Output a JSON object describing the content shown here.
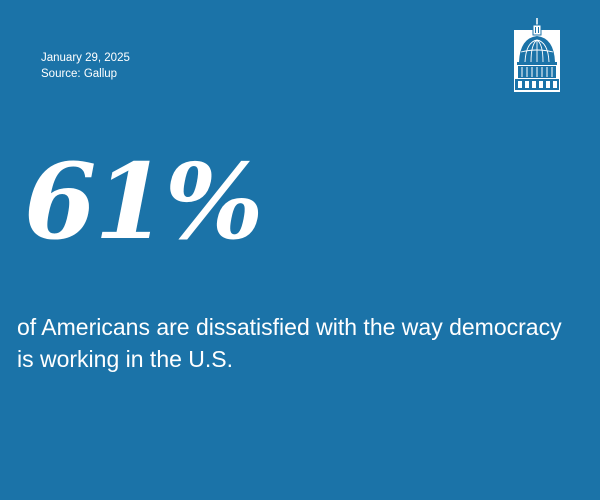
{
  "header": {
    "date": "January 29, 2025",
    "source": "Source: Gallup"
  },
  "logo": {
    "icon": "capitol-dome-icon"
  },
  "stat": {
    "value": "61%",
    "caption": "of Americans are dissatisfied with the way democracy is working in the U.S."
  },
  "colors": {
    "background": "#1b73a8",
    "text": "#ffffff"
  }
}
